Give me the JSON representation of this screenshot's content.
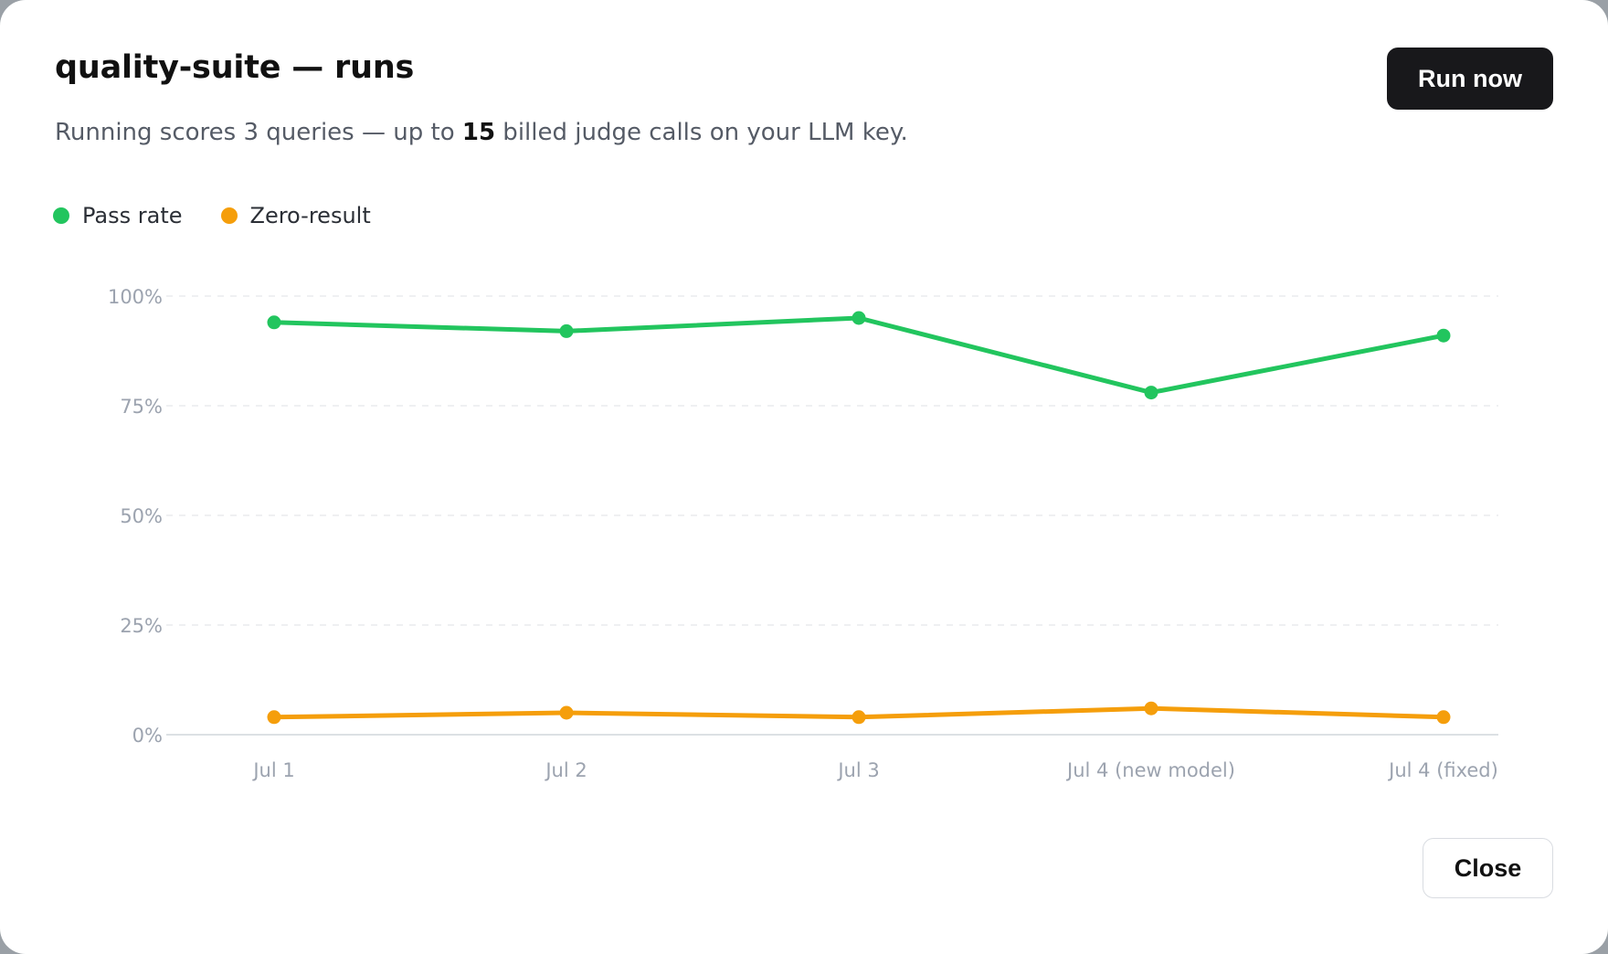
{
  "dialog": {
    "title": "quality-suite — runs",
    "subtitle_prefix": "Running scores 3 queries — up to ",
    "subtitle_bold": "15",
    "subtitle_suffix": " billed judge calls on your LLM key.",
    "run_button": "Run now",
    "close_button": "Close"
  },
  "colors": {
    "pass_rate": "#22c55e",
    "zero_result": "#f59e0b"
  },
  "chart_data": {
    "type": "line",
    "categories": [
      "Jul 1",
      "Jul 2",
      "Jul 3",
      "Jul 4 (new model)",
      "Jul 4 (fixed)"
    ],
    "series": [
      {
        "name": "Pass rate",
        "values": [
          94,
          92,
          95,
          78,
          91
        ]
      },
      {
        "name": "Zero-result",
        "values": [
          4,
          5,
          4,
          6,
          4
        ]
      }
    ],
    "ylim": [
      0,
      100
    ],
    "yticks": [
      0,
      25,
      50,
      75,
      100
    ],
    "ytick_labels": [
      "0%",
      "25%",
      "50%",
      "75%",
      "100%"
    ],
    "grid": true,
    "legend": "top-left"
  }
}
